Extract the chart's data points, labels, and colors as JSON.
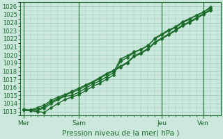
{
  "title": "",
  "xlabel": "Pression niveau de la mer( hPa )",
  "ylabel": "",
  "bg_color": "#cce8dd",
  "grid_color": "#99ccbb",
  "line_color": "#1a6b2a",
  "ylim": [
    1012.5,
    1026.5
  ],
  "yticks": [
    1013,
    1014,
    1015,
    1016,
    1017,
    1018,
    1019,
    1020,
    1021,
    1022,
    1023,
    1024,
    1025,
    1026
  ],
  "day_labels": [
    "Mer",
    "Sam",
    "Jeu",
    "Ven"
  ],
  "day_positions": [
    0,
    8,
    20,
    26
  ],
  "xlim": [
    -0.5,
    28.5
  ],
  "series": [
    [
      1013.2,
      1013.1,
      1013.0,
      1012.9,
      1013.5,
      1014.0,
      1014.5,
      1014.8,
      1015.1,
      1015.6,
      1016.1,
      1016.5,
      1017.0,
      1017.5,
      1019.2,
      1019.7,
      1020.3,
      1020.7,
      1021.2,
      1022.0,
      1022.5,
      1023.0,
      1023.4,
      1024.0,
      1024.4,
      1024.9,
      1025.3,
      1025.8
    ],
    [
      1013.3,
      1013.2,
      1013.2,
      1013.4,
      1014.0,
      1014.5,
      1014.9,
      1015.0,
      1015.4,
      1015.9,
      1016.4,
      1016.8,
      1017.3,
      1017.8,
      1019.5,
      1019.9,
      1020.4,
      1020.7,
      1021.1,
      1022.1,
      1022.6,
      1023.1,
      1023.5,
      1024.1,
      1024.5,
      1024.9,
      1025.3,
      1025.9
    ],
    [
      1013.2,
      1013.1,
      1013.3,
      1013.6,
      1014.2,
      1014.6,
      1015.0,
      1015.4,
      1015.7,
      1016.2,
      1016.6,
      1017.1,
      1017.6,
      1018.0,
      1018.5,
      1019.0,
      1019.8,
      1020.2,
      1020.7,
      1021.5,
      1022.0,
      1022.5,
      1023.0,
      1023.6,
      1024.0,
      1024.5,
      1025.0,
      1025.5
    ],
    [
      1013.2,
      1013.2,
      1013.5,
      1013.8,
      1014.4,
      1014.8,
      1015.1,
      1015.5,
      1015.9,
      1016.3,
      1016.7,
      1017.2,
      1017.7,
      1018.1,
      1018.6,
      1019.1,
      1019.9,
      1020.3,
      1020.8,
      1021.6,
      1022.1,
      1022.6,
      1023.1,
      1023.7,
      1024.1,
      1024.6,
      1025.1,
      1025.6
    ]
  ],
  "marker": "D",
  "marker_size": 2.5,
  "linewidth": 1.0,
  "ylabel_fontsize": 6,
  "xlabel_fontsize": 7.5,
  "xlabel_color": "#1a6b2a",
  "ytick_fontsize": 6,
  "xtick_fontsize": 6.5
}
